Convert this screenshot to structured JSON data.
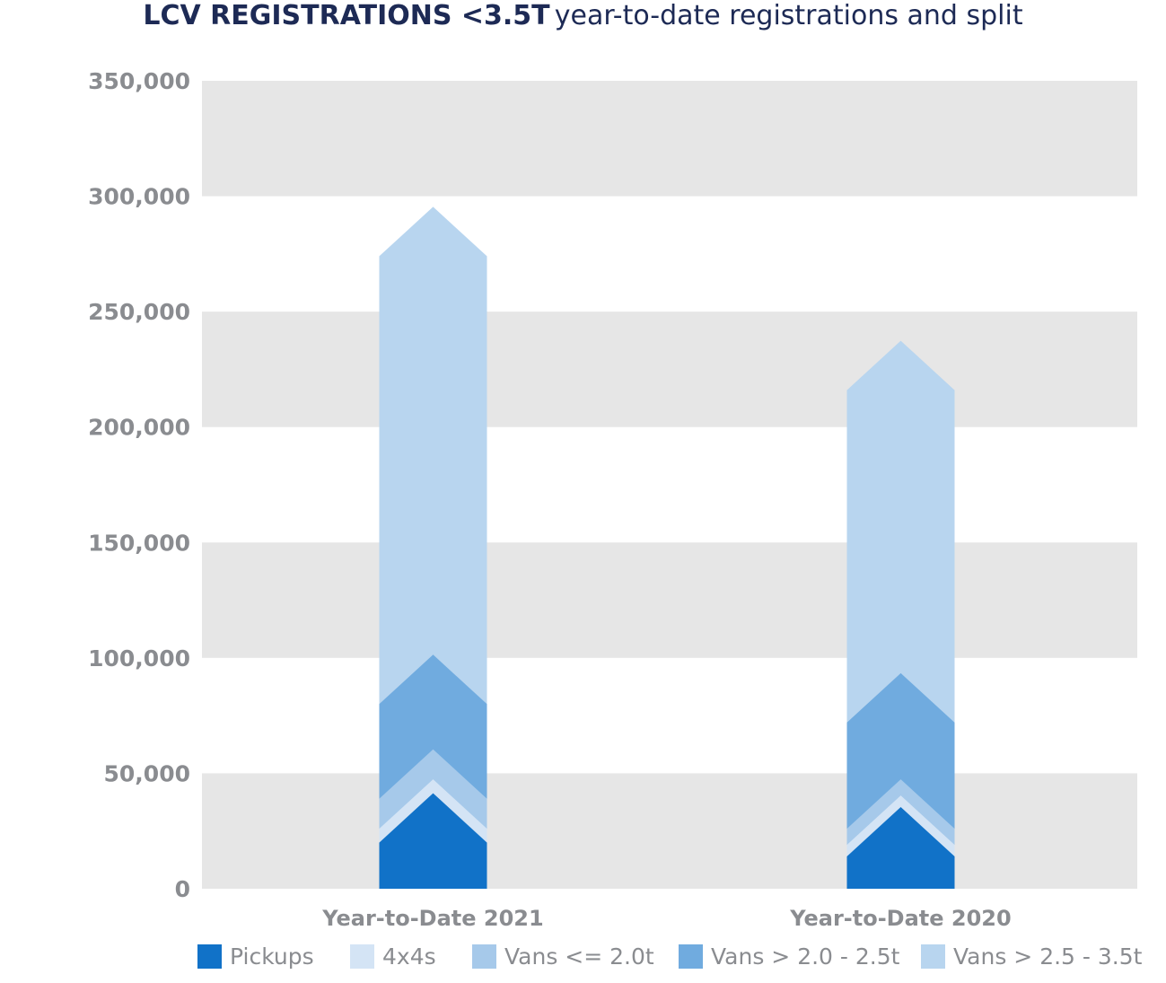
{
  "chart_data": {
    "type": "bar",
    "stacked": true,
    "title_bold": "LCV REGISTRATIONS <3.5T",
    "title_rest": "year-to-date registrations and split",
    "categories": [
      "Year-to-Date 2021",
      "Year-to-Date 2020"
    ],
    "series": [
      {
        "name": "Pickups",
        "values": [
          20000,
          14000
        ],
        "color": "#1172c8"
      },
      {
        "name": "4x4s",
        "values": [
          6000,
          5000
        ],
        "color": "#d4e4f5"
      },
      {
        "name": "Vans <= 2.0t",
        "values": [
          13000,
          7000
        ],
        "color": "#a6c9ea"
      },
      {
        "name": "Vans > 2.0 - 2.5t",
        "values": [
          41000,
          46000
        ],
        "color": "#70abdf"
      },
      {
        "name": "Vans > 2.5 - 3.5t",
        "values": [
          194000,
          144000
        ],
        "color": "#b8d5ef"
      }
    ],
    "yticks": [
      "0",
      "50,000",
      "100,000",
      "150,000",
      "200,000",
      "250,000",
      "300,000",
      "350,000"
    ],
    "ylim": [
      0,
      350000
    ],
    "grid": "alternating bands",
    "legend_position": "bottom"
  }
}
